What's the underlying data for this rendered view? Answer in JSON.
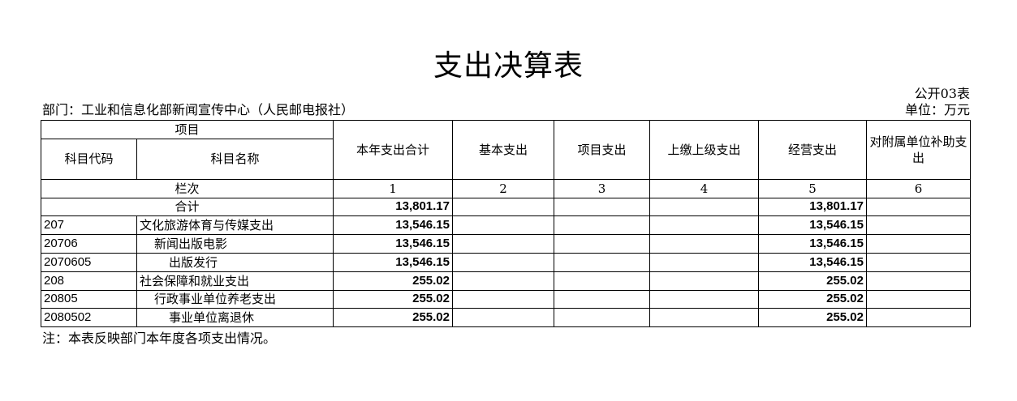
{
  "title": "支出决算表",
  "form_no": "公开03表",
  "department": "部门：工业和信息化部新闻宣传中心（人民邮电报社）",
  "unit": "单位：万元",
  "header": {
    "item": "项目",
    "code": "科目代码",
    "name": "科目名称",
    "columns": [
      "本年支出合计",
      "基本支出",
      "项目支出",
      "上缴上级支出",
      "经营支出",
      "对附属单位补助支出"
    ],
    "row_index_label": "栏次",
    "row_index": [
      "1",
      "2",
      "3",
      "4",
      "5",
      "6"
    ]
  },
  "total": {
    "label": "合计",
    "values": [
      "13,801.17",
      "",
      "",
      "",
      "13,801.17",
      ""
    ]
  },
  "rows": [
    {
      "code": "207",
      "name": "文化旅游体育与传媒支出",
      "indent": 0,
      "values": [
        "13,546.15",
        "",
        "",
        "",
        "13,546.15",
        ""
      ]
    },
    {
      "code": "20706",
      "name": "新闻出版电影",
      "indent": 1,
      "values": [
        "13,546.15",
        "",
        "",
        "",
        "13,546.15",
        ""
      ]
    },
    {
      "code": "2070605",
      "name": "出版发行",
      "indent": 2,
      "values": [
        "13,546.15",
        "",
        "",
        "",
        "13,546.15",
        ""
      ]
    },
    {
      "code": "208",
      "name": "社会保障和就业支出",
      "indent": 0,
      "values": [
        "255.02",
        "",
        "",
        "",
        "255.02",
        ""
      ]
    },
    {
      "code": "20805",
      "name": "行政事业单位养老支出",
      "indent": 1,
      "values": [
        "255.02",
        "",
        "",
        "",
        "255.02",
        ""
      ]
    },
    {
      "code": "2080502",
      "name": "事业单位离退休",
      "indent": 2,
      "values": [
        "255.02",
        "",
        "",
        "",
        "255.02",
        ""
      ]
    }
  ],
  "note": "注：本表反映部门本年度各项支出情况。"
}
